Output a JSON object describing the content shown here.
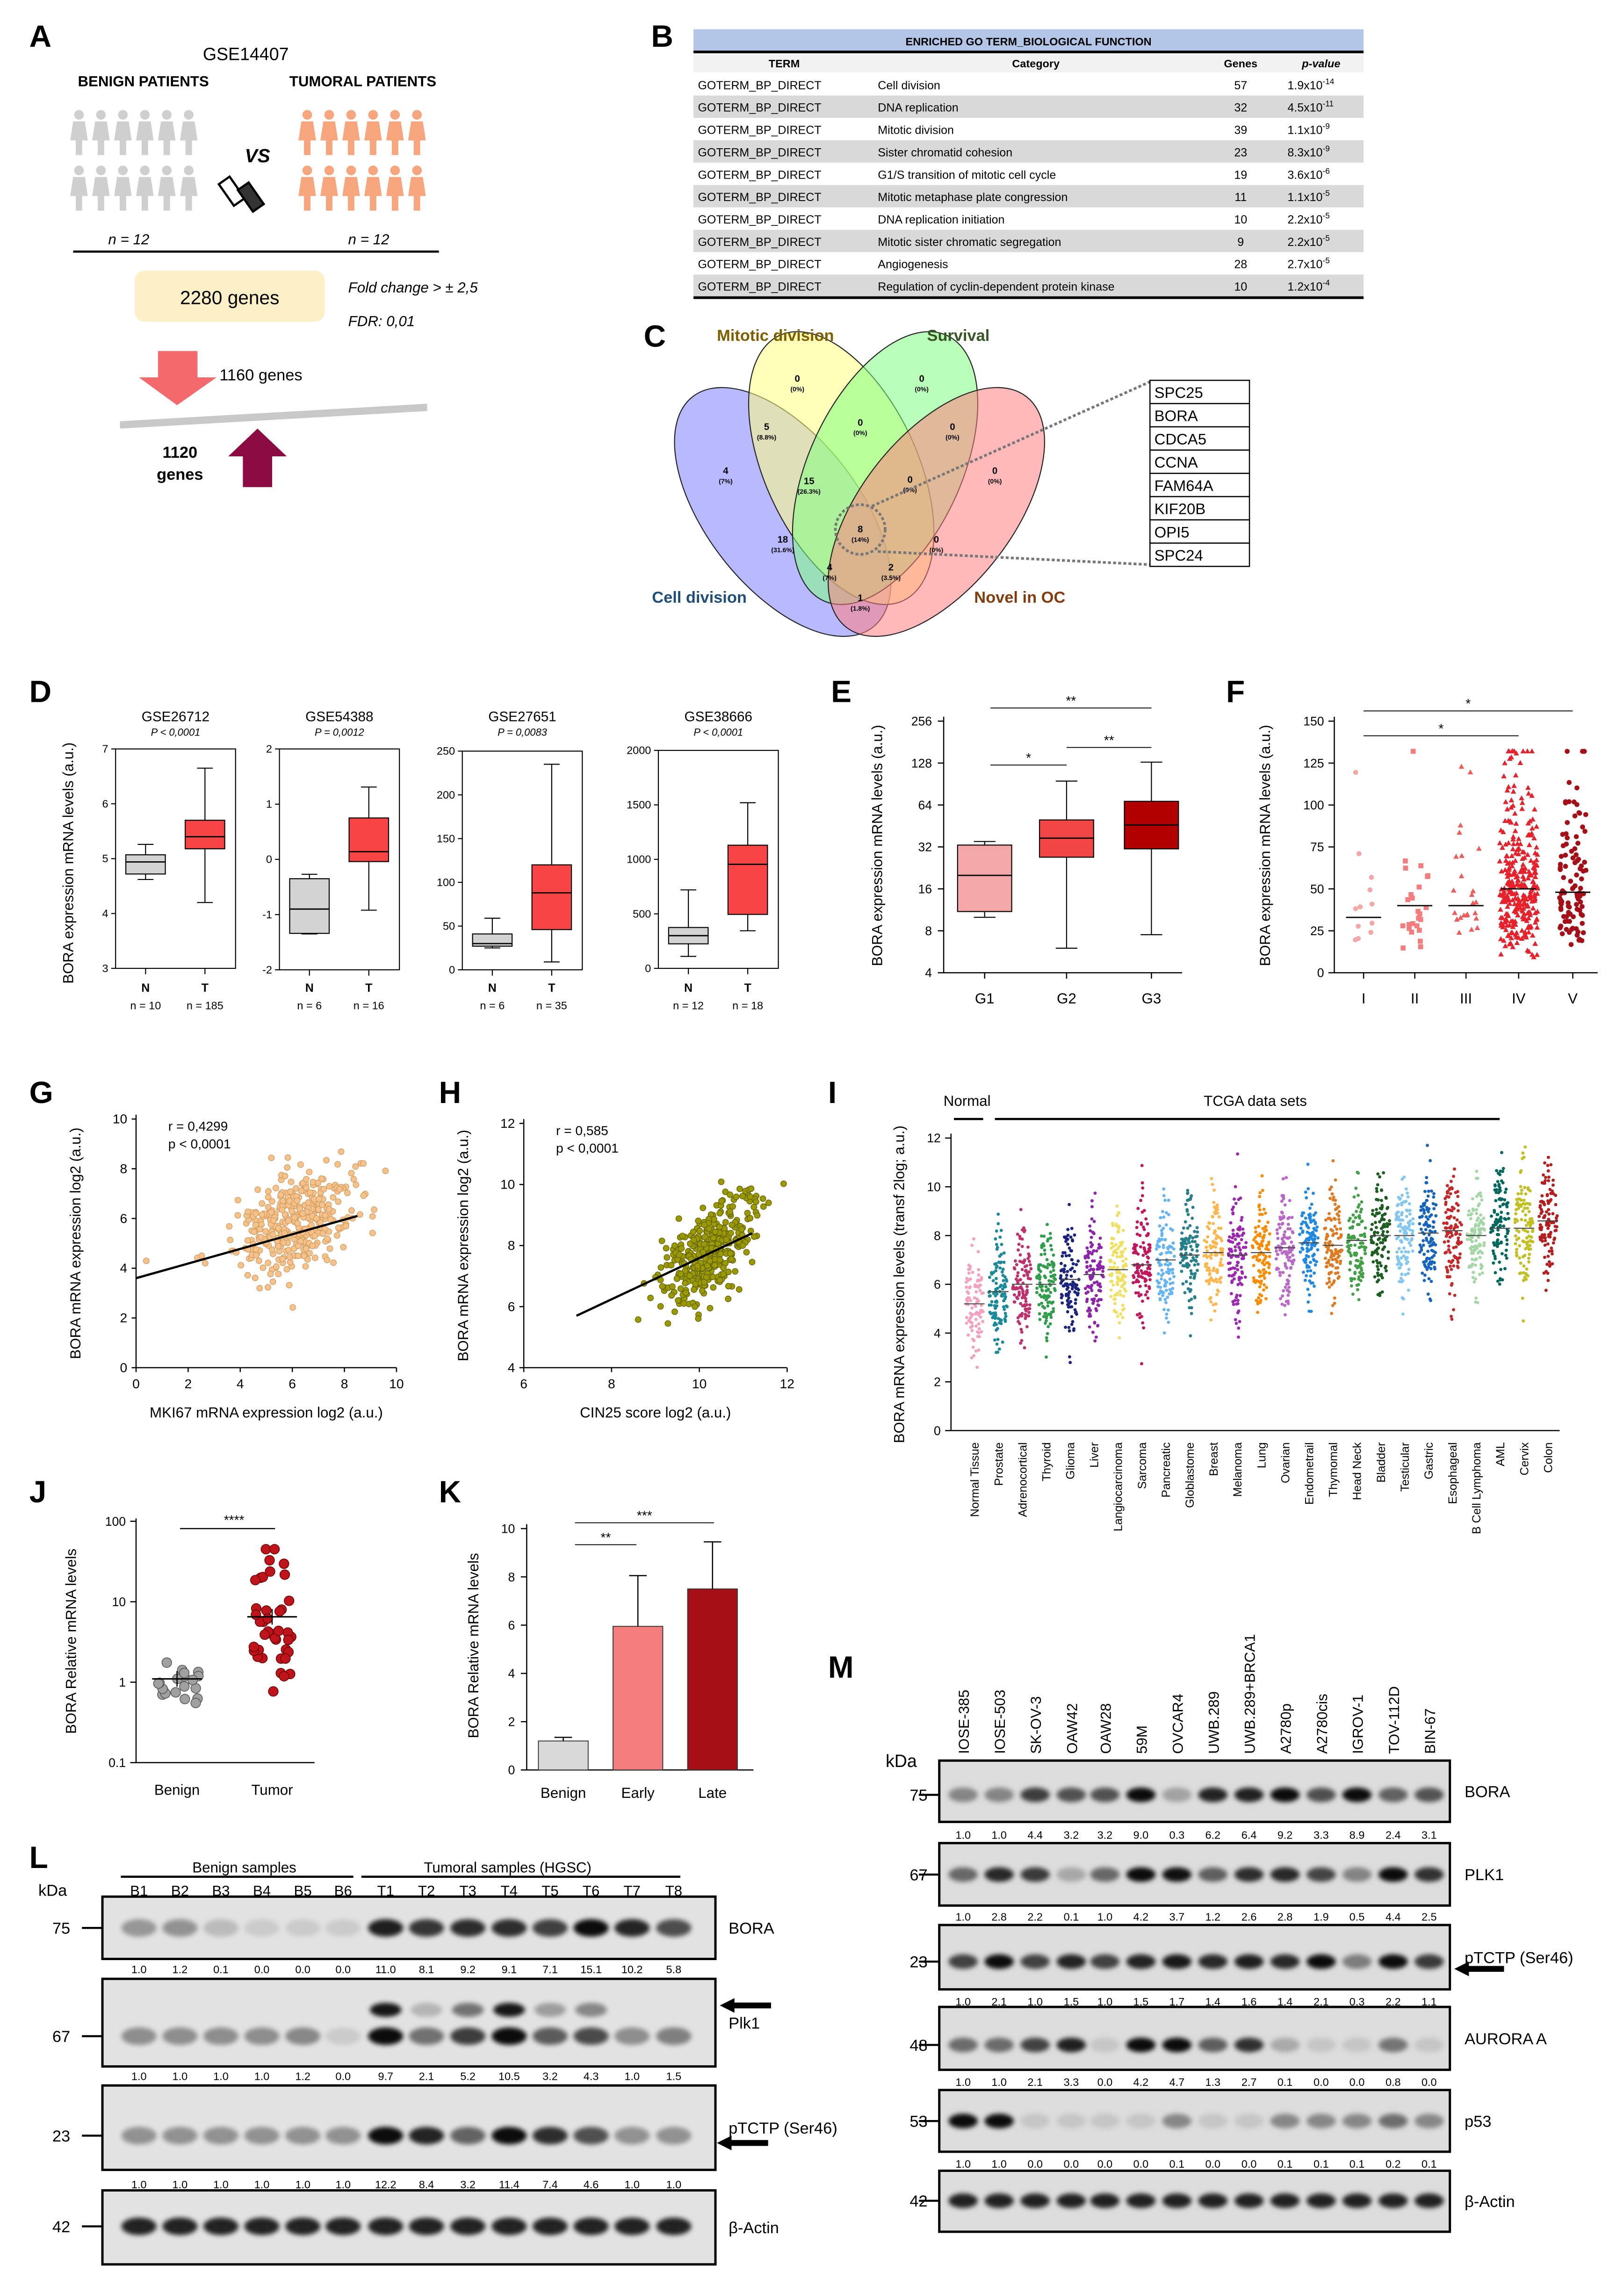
{
  "panel_labels": [
    "A",
    "B",
    "C",
    "D",
    "E",
    "F",
    "G",
    "H",
    "I",
    "J",
    "K",
    "L",
    "M"
  ],
  "panelA": {
    "dataset": "GSE14407",
    "benign_label": "BENIGN PATIENTS",
    "tumoral_label": "TUMORAL PATIENTS",
    "vs": "VS",
    "benign_n": "n = 12",
    "tumoral_n": "n = 12",
    "genes_total": "2280 genes",
    "fold_change": "Fold change > ± 2,5",
    "fdr": "FDR: 0,01",
    "down_genes": "1160 genes",
    "up_genes_num": "1120",
    "up_genes_word": "genes",
    "colors": {
      "benign": "#cfcfcf",
      "tumoral": "#f7a57c",
      "genes_box": "#fdefc6",
      "down": "#f46a6c",
      "up": "#8b0a41"
    }
  },
  "panelB": {
    "title": "ENRICHED GO TERM_BIOLOGICAL FUNCTION",
    "headers": [
      "TERM",
      "Category",
      "Genes",
      "p-value"
    ],
    "rows": [
      {
        "term": "GOTERM_BP_DIRECT",
        "category": "Cell division",
        "genes": "57",
        "p_mant": "1.9x10",
        "p_exp": "-14"
      },
      {
        "term": "GOTERM_BP_DIRECT",
        "category": "DNA replication",
        "genes": "32",
        "p_mant": "4.5x10",
        "p_exp": "-11"
      },
      {
        "term": "GOTERM_BP_DIRECT",
        "category": "Mitotic division",
        "genes": "39",
        "p_mant": "1.1x10",
        "p_exp": "-9"
      },
      {
        "term": "GOTERM_BP_DIRECT",
        "category": "Sister chromatid cohesion",
        "genes": "23",
        "p_mant": "8.3x10",
        "p_exp": "-9"
      },
      {
        "term": "GOTERM_BP_DIRECT",
        "category": "G1/S transition of mitotic cell cycle",
        "genes": "19",
        "p_mant": "3.6x10",
        "p_exp": "-6"
      },
      {
        "term": "GOTERM_BP_DIRECT",
        "category": "Mitotic metaphase plate congression",
        "genes": "11",
        "p_mant": "1.1x10",
        "p_exp": "-5"
      },
      {
        "term": "GOTERM_BP_DIRECT",
        "category": "DNA replication initiation",
        "genes": "10",
        "p_mant": "2.2x10",
        "p_exp": "-5"
      },
      {
        "term": "GOTERM_BP_DIRECT",
        "category": "Mitotic sister chromatic segregation",
        "genes": "9",
        "p_mant": "2.2x10",
        "p_exp": "-5"
      },
      {
        "term": "GOTERM_BP_DIRECT",
        "category": "Angiogenesis",
        "genes": "28",
        "p_mant": "2.7x10",
        "p_exp": "-5"
      },
      {
        "term": "GOTERM_BP_DIRECT",
        "category": "Regulation of cyclin-dependent protein kinase",
        "genes": "10",
        "p_mant": "1.2x10",
        "p_exp": "-4"
      }
    ]
  },
  "panelC": {
    "sets": [
      {
        "name": "Mitotic division",
        "color": "#7f6000"
      },
      {
        "name": "Survival",
        "color": "#375623"
      },
      {
        "name": "Cell division",
        "color": "#1f4e79"
      },
      {
        "name": "Novel in OC",
        "color": "#843c0c"
      }
    ],
    "regions": [
      {
        "count": "0",
        "pct": "(0%)"
      },
      {
        "count": "0",
        "pct": "(0%)"
      },
      {
        "count": "5",
        "pct": "(8.8%)"
      },
      {
        "count": "0",
        "pct": "(0%)"
      },
      {
        "count": "0",
        "pct": "(0%)"
      },
      {
        "count": "4",
        "pct": "(7%)"
      },
      {
        "count": "15",
        "pct": "(26.3%)"
      },
      {
        "count": "0",
        "pct": "(0%)"
      },
      {
        "count": "0",
        "pct": "(0%)"
      },
      {
        "count": "8",
        "pct": "(14%)"
      },
      {
        "count": "18",
        "pct": "(31.6%)"
      },
      {
        "count": "0",
        "pct": "(0%)"
      },
      {
        "count": "4",
        "pct": "(7%)"
      },
      {
        "count": "2",
        "pct": "(3.5%)"
      },
      {
        "count": "1",
        "pct": "(1.8%)"
      }
    ],
    "genes": [
      "SPC25",
      "BORA",
      "CDCA5",
      "CCNA",
      "FAM64A",
      "KIF20B",
      "OPI5",
      "SPC24"
    ]
  },
  "chart_data": [
    {
      "panel": "D",
      "type": "box",
      "title": "GSE26712",
      "pvalue": "P < 0,0001",
      "ylabel": "BORA expression mRNA levels (a.u.)",
      "ylim": [
        3,
        7
      ],
      "yticks": [
        "3",
        "4",
        "5",
        "6",
        "7"
      ],
      "groups": [
        {
          "name": "N",
          "n": "n = 10",
          "min": 4.62,
          "q1": 4.72,
          "median": 4.94,
          "q3": 5.07,
          "max": 5.26,
          "color": "#d3d3d3"
        },
        {
          "name": "T",
          "n": "n = 185",
          "min": 4.2,
          "q1": 5.18,
          "median": 5.4,
          "q3": 5.7,
          "max": 6.65,
          "color": "#f84444"
        }
      ]
    },
    {
      "panel": "D",
      "type": "box",
      "title": "GSE54388",
      "pvalue": "P = 0,0012",
      "ylim": [
        -2,
        2
      ],
      "yticks": [
        "-2",
        "-1",
        "0",
        "1",
        "2"
      ],
      "groups": [
        {
          "name": "N",
          "n": "n = 6",
          "min": -1.35,
          "q1": -1.34,
          "median": -0.9,
          "q3": -0.35,
          "max": -0.27,
          "color": "#d3d3d3"
        },
        {
          "name": "T",
          "n": "n = 16",
          "min": -0.92,
          "q1": -0.04,
          "median": 0.14,
          "q3": 0.75,
          "max": 1.31,
          "color": "#f84444"
        }
      ]
    },
    {
      "panel": "D",
      "type": "box",
      "title": "GSE27651",
      "pvalue": "P = 0,0083",
      "ylim": [
        0,
        250
      ],
      "yticks": [
        "0",
        "50",
        "100",
        "150",
        "200",
        "250"
      ],
      "groups": [
        {
          "name": "N",
          "n": "n = 6",
          "min": 25,
          "q1": 27,
          "median": 30,
          "q3": 41,
          "max": 59,
          "color": "#d3d3d3"
        },
        {
          "name": "T",
          "n": "n = 35",
          "min": 9,
          "q1": 46,
          "median": 88,
          "q3": 120,
          "max": 235,
          "color": "#f84444"
        }
      ]
    },
    {
      "panel": "D",
      "type": "box",
      "title": "GSE38666",
      "pvalue": "P < 0,0001",
      "ylim": [
        0,
        2000
      ],
      "yticks": [
        "0",
        "500",
        "1000",
        "1500",
        "2000"
      ],
      "groups": [
        {
          "name": "N",
          "n": "n = 12",
          "min": 110,
          "q1": 225,
          "median": 300,
          "q3": 375,
          "max": 720,
          "color": "#d3d3d3"
        },
        {
          "name": "T",
          "n": "n = 18",
          "min": 345,
          "q1": 495,
          "median": 955,
          "q3": 1130,
          "max": 1520,
          "color": "#f84444"
        }
      ]
    },
    {
      "panel": "E",
      "type": "box",
      "ylabel": "BORA expression mRNA levels (a.u.)",
      "yscale": "log2",
      "ylim": [
        4,
        256
      ],
      "yticks": [
        "4",
        "8",
        "16",
        "32",
        "64",
        "128",
        "256"
      ],
      "groups": [
        {
          "name": "G1",
          "min": 10,
          "q1": 11,
          "median": 20,
          "q3": 33,
          "max": 35,
          "color": "#f4a7a7"
        },
        {
          "name": "G2",
          "min": 6,
          "q1": 27,
          "median": 37,
          "q3": 50,
          "max": 95,
          "color": "#f24545"
        },
        {
          "name": "G3",
          "min": 7.5,
          "q1": 31,
          "median": 46,
          "q3": 68,
          "max": 130,
          "color": "#b20000"
        }
      ],
      "significance": [
        {
          "from": "G1",
          "to": "G3",
          "label": "**"
        },
        {
          "from": "G1",
          "to": "G2",
          "label": "*"
        },
        {
          "from": "G2",
          "to": "G3",
          "label": "**"
        }
      ]
    },
    {
      "panel": "F",
      "type": "scatter",
      "ylabel": "BORA expression mRNA levels (a.u.)",
      "ylim": [
        0,
        150
      ],
      "yticks": [
        "0",
        "25",
        "50",
        "75",
        "100",
        "125",
        "150"
      ],
      "groups": [
        {
          "name": "I",
          "n": 12,
          "mean": 33,
          "color": "#f4a7a7",
          "marker": "circle"
        },
        {
          "name": "II",
          "n": 25,
          "mean": 40,
          "color": "#f47c7c",
          "marker": "square"
        },
        {
          "name": "III",
          "n": 25,
          "mean": 40,
          "color": "#f25a5a",
          "marker": "triangle"
        },
        {
          "name": "IV",
          "n": 300,
          "mean": 50,
          "color": "#e8202a",
          "marker": "triangle"
        },
        {
          "name": "V",
          "n": 100,
          "mean": 48,
          "color": "#a50f15",
          "marker": "circle"
        }
      ],
      "significance": [
        {
          "from": "I",
          "to": "V",
          "label": "*"
        },
        {
          "from": "I",
          "to": "IV",
          "label": "*"
        }
      ]
    },
    {
      "panel": "G",
      "type": "scatter",
      "xlabel": "MKI67 mRNA expression log2 (a.u.)",
      "ylabel": "BORA mRNA expression log2 (a.u.)",
      "xlim": [
        0,
        10
      ],
      "ylim": [
        0,
        10
      ],
      "xticks": [
        "0",
        "2",
        "4",
        "6",
        "8",
        "10"
      ],
      "yticks": [
        "0",
        "2",
        "4",
        "6",
        "8",
        "10"
      ],
      "r": "r = 0,4299",
      "p": "p < 0,0001",
      "n_points": 380,
      "center": [
        6.2,
        5.8
      ],
      "fit": [
        [
          0,
          3.6
        ],
        [
          8.5,
          6.1
        ]
      ],
      "color": "#f5c28c"
    },
    {
      "panel": "H",
      "type": "scatter",
      "xlabel": "CIN25 score log2 (a.u.)",
      "ylabel": "BORA mRNA expression log2 (a.u.)",
      "xlim": [
        6,
        12
      ],
      "ylim": [
        4,
        12
      ],
      "xticks": [
        "6",
        "8",
        "10",
        "12"
      ],
      "yticks": [
        "4",
        "6",
        "8",
        "10",
        "12"
      ],
      "r": "r = 0,585",
      "p": "p < 0,0001",
      "n_points": 380,
      "center": [
        10.2,
        7.8
      ],
      "fit": [
        [
          7.2,
          5.7
        ],
        [
          11.2,
          8.4
        ]
      ],
      "color": "#9a9a00"
    },
    {
      "panel": "I",
      "type": "scatter",
      "ylabel": "BORA mRNA expression levels (transf 2log; a.u.)",
      "ylim": [
        0,
        12
      ],
      "yticks": [
        "0",
        "2",
        "4",
        "6",
        "8",
        "10",
        "12"
      ],
      "header_normal": "Normal",
      "header_tcga": "TCGA data sets",
      "categories": [
        "Normal Tissue",
        "Prostate",
        "Adrenocortical",
        "Thyroid",
        "Glioma",
        "Liver",
        "Langiocarcinoma",
        "Sarcoma",
        "Pancreatic",
        "Globlastome",
        "Breast",
        "Melanoma",
        "Lung",
        "Ovarian",
        "Endometrail",
        "Thymomal",
        "Head Neck",
        "Bladder",
        "Testicular",
        "Gastric",
        "Esophageal",
        "B Cell Lymphoma",
        "AML",
        "Cervix",
        "Colon"
      ],
      "medians": [
        5.2,
        5.7,
        6.0,
        6.0,
        6.2,
        6.4,
        6.6,
        6.8,
        7.0,
        7.2,
        7.3,
        7.2,
        7.3,
        7.5,
        7.7,
        7.6,
        7.8,
        8.0,
        8.0,
        8.1,
        8.2,
        8.0,
        8.3,
        8.3,
        8.6
      ],
      "colors": [
        "#f4a0c0",
        "#1a8a9a",
        "#c0306a",
        "#2e9e4a",
        "#1a237e",
        "#8e24aa",
        "#f0e060",
        "#c2185b",
        "#64b5f6",
        "#26808a",
        "#ffb74d",
        "#9c27b0",
        "#fb8c00",
        "#ba68c8",
        "#1e88e5",
        "#e07a20",
        "#43a047",
        "#1b5e20",
        "#81c7f0",
        "#1565c0",
        "#c62828",
        "#a5d6a7",
        "#00695c",
        "#c0c020",
        "#b71c1c"
      ]
    },
    {
      "panel": "J",
      "type": "scatter",
      "ylabel": "BORA Relative mRNA levels",
      "yscale": "log10",
      "ylim": [
        0.1,
        100
      ],
      "yticks": [
        "0.1",
        "1",
        "10",
        "100"
      ],
      "groups": [
        {
          "name": "Benign",
          "n": 20,
          "mean": 1.1,
          "color": "#a0a0a0"
        },
        {
          "name": "Tumor",
          "n": 40,
          "mean": 6.5,
          "color": "#c0141c"
        }
      ],
      "significance": "****"
    },
    {
      "panel": "K",
      "type": "bar",
      "ylabel": "BORA Relative mRNA levels",
      "ylim": [
        0,
        10
      ],
      "yticks": [
        "0",
        "2",
        "4",
        "6",
        "8",
        "10"
      ],
      "categories": [
        "Benign",
        "Early",
        "Late"
      ],
      "values": [
        1.2,
        5.95,
        7.5
      ],
      "errors": [
        0.15,
        2.1,
        1.95
      ],
      "colors": [
        "#d9d9d9",
        "#f47c7c",
        "#a50f15"
      ],
      "significance": [
        {
          "from": "Benign",
          "to": "Early",
          "label": "**"
        },
        {
          "from": "Benign",
          "to": "Late",
          "label": "***"
        }
      ]
    }
  ],
  "panelL": {
    "kda_label": "kDa",
    "groups": [
      "Benign samples",
      "Tumoral samples (HGSC)"
    ],
    "lanes": [
      "B1",
      "B2",
      "B3",
      "B4",
      "B5",
      "B6",
      "T1",
      "T2",
      "T3",
      "T4",
      "T5",
      "T6",
      "T7",
      "T8"
    ],
    "blots": [
      {
        "protein": "BORA",
        "kda": "75",
        "quant": [
          "1.0",
          "1.2",
          "0.1",
          "0.0",
          "0.0",
          "0.0",
          "11.0",
          "8.1",
          "9.2",
          "9.1",
          "7.1",
          "15.1",
          "10.2",
          "5.8"
        ]
      },
      {
        "protein": "Plk1",
        "kda": "67",
        "quant": [
          "1.0",
          "1.0",
          "1.0",
          "1.0",
          "1.2",
          "0.0",
          "9.7",
          "2.1",
          "5.2",
          "10.5",
          "3.2",
          "4.3",
          "1.0",
          "1.5"
        ]
      },
      {
        "protein": "pTCTP (Ser46)",
        "kda": "23",
        "quant": [
          "1.0",
          "1.0",
          "1.0",
          "1.0",
          "1.0",
          "1.0",
          "12.2",
          "8.4",
          "3.2",
          "11.4",
          "7.4",
          "4.6",
          "1.0",
          "1.0"
        ]
      },
      {
        "protein": "β-Actin",
        "kda": "42"
      }
    ]
  },
  "panelM": {
    "kda_label": "kDa",
    "lanes": [
      "IOSE-385",
      "IOSE-503",
      "SK-OV-3",
      "OAW42",
      "OAW28",
      "59M",
      "OVCAR4",
      "UWB.289",
      "UWB.289+BRCA1",
      "A2780p",
      "A2780cis",
      "IGROV-1",
      "TOV-112D",
      "BIN-67"
    ],
    "blots": [
      {
        "protein": "BORA",
        "kda": "75",
        "quant": [
          "1.0",
          "1.0",
          "4.4",
          "3.2",
          "3.2",
          "9.0",
          "0.3",
          "6.2",
          "6.4",
          "9.2",
          "3.3",
          "8.9",
          "2.4",
          "3.1"
        ]
      },
      {
        "protein": "PLK1",
        "kda": "67",
        "quant": [
          "1.0",
          "2.8",
          "2.2",
          "0.1",
          "1.0",
          "4.2",
          "3.7",
          "1.2",
          "2.6",
          "2.8",
          "1.9",
          "0.5",
          "4.4",
          "2.5"
        ]
      },
      {
        "protein": "pTCTP (Ser46)",
        "kda": "23",
        "quant": [
          "1.0",
          "2.1",
          "1.0",
          "1.5",
          "1.0",
          "1.5",
          "1.7",
          "1.4",
          "1.6",
          "1.4",
          "2.1",
          "0.3",
          "2.2",
          "1.1"
        ]
      },
      {
        "protein": "AURORA A",
        "kda": "48",
        "quant": [
          "1.0",
          "1.0",
          "2.1",
          "3.3",
          "0.0",
          "4.2",
          "4.7",
          "1.3",
          "2.7",
          "0.1",
          "0.0",
          "0.0",
          "0.8",
          "0.0"
        ]
      },
      {
        "protein": "p53",
        "kda": "53",
        "quant": [
          "1.0",
          "1.0",
          "0.0",
          "0.0",
          "0.0",
          "0.0",
          "0.1",
          "0.0",
          "0.0",
          "0.1",
          "0.1",
          "0.1",
          "0.2",
          "0.1"
        ]
      },
      {
        "protein": "β-Actin",
        "kda": "42"
      }
    ]
  }
}
